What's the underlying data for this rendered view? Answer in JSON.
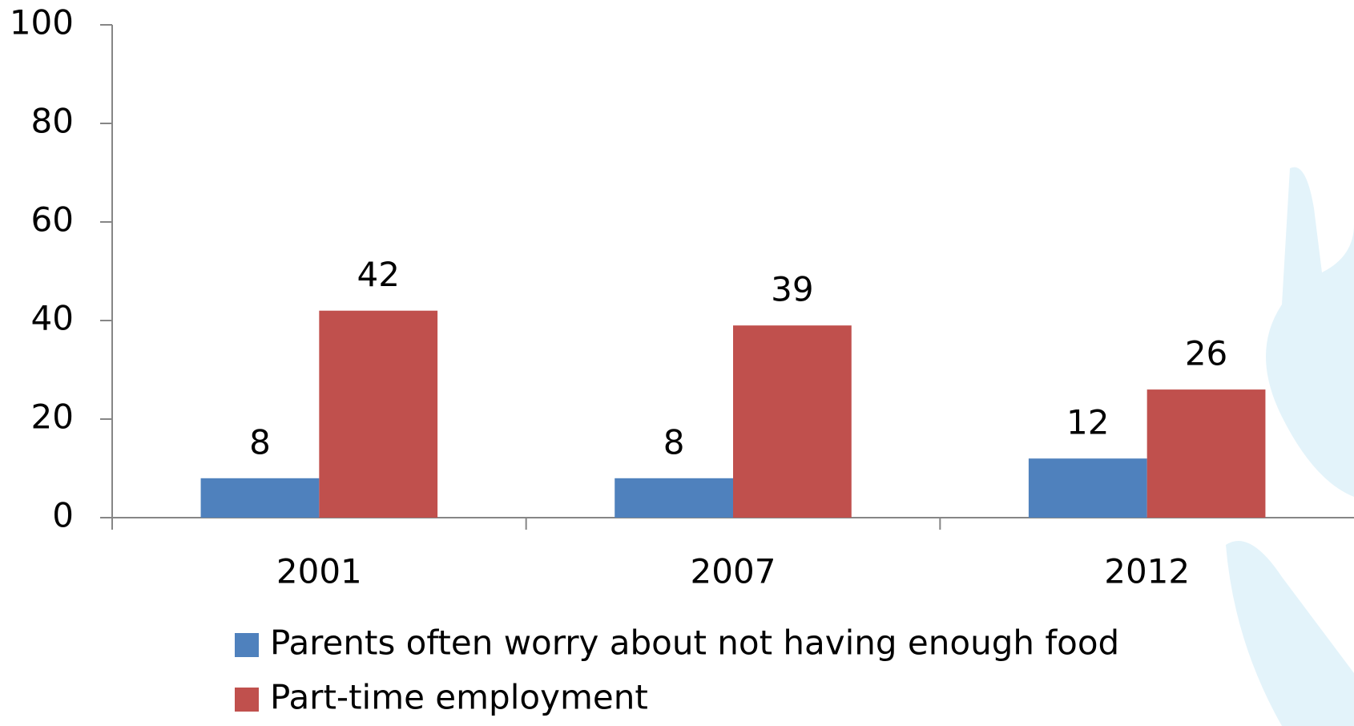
{
  "chart_data": {
    "type": "bar",
    "categories": [
      "2001",
      "2007",
      "2012"
    ],
    "series": [
      {
        "name": "Parents often worry about not having enough food",
        "color": "#4f81bd",
        "values": [
          8,
          8,
          12
        ]
      },
      {
        "name": "Part-time employment",
        "color": "#c0504d",
        "values": [
          42,
          39,
          26
        ]
      }
    ],
    "ylim": [
      0,
      100
    ],
    "yticks": [
      0,
      20,
      40,
      60,
      80,
      100
    ],
    "grid": false,
    "legend": "bottom"
  }
}
